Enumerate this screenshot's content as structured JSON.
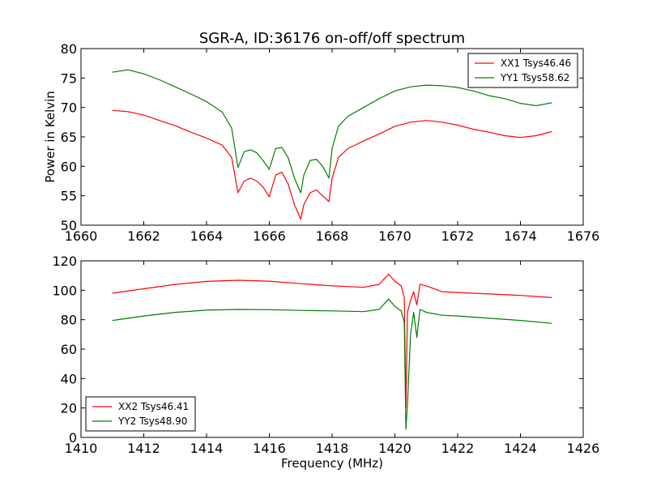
{
  "figure": {
    "title": "SGR-A, ID:36176 on-off/off spectrum"
  },
  "colors": {
    "red": "#ff0000",
    "green": "#007f00"
  },
  "chart_data": [
    {
      "type": "line",
      "title": "SGR-A, ID:36176 on-off/off spectrum",
      "xlabel": "",
      "ylabel": "Power in Kelvin",
      "xlim": [
        1660,
        1676
      ],
      "ylim": [
        50,
        80
      ],
      "xticks": [
        1660,
        1662,
        1664,
        1666,
        1668,
        1670,
        1672,
        1674,
        1676
      ],
      "yticks": [
        50,
        55,
        60,
        65,
        70,
        75,
        80
      ],
      "legend_position": "top-right",
      "series": [
        {
          "name": "XX1 Tsys46.46",
          "color": "#ff0000",
          "x": [
            1661.0,
            1661.5,
            1662.0,
            1662.5,
            1663.0,
            1663.5,
            1664.0,
            1664.5,
            1664.8,
            1665.0,
            1665.2,
            1665.4,
            1665.6,
            1665.8,
            1666.0,
            1666.2,
            1666.4,
            1666.6,
            1666.8,
            1667.0,
            1667.1,
            1667.3,
            1667.5,
            1667.7,
            1667.9,
            1668.0,
            1668.2,
            1668.5,
            1669.0,
            1669.5,
            1670.0,
            1670.5,
            1671.0,
            1671.5,
            1672.0,
            1672.5,
            1673.0,
            1673.5,
            1674.0,
            1674.5,
            1675.0
          ],
          "y": [
            69.5,
            69.3,
            68.7,
            67.8,
            66.9,
            65.8,
            64.8,
            63.6,
            61.5,
            55.5,
            57.5,
            58.0,
            57.5,
            56.5,
            54.8,
            58.5,
            59.0,
            57.0,
            53.5,
            51.0,
            53.5,
            55.5,
            56.0,
            55.0,
            54.0,
            58.0,
            61.5,
            63.0,
            64.3,
            65.5,
            66.8,
            67.5,
            67.8,
            67.5,
            67.0,
            66.3,
            65.8,
            65.2,
            64.9,
            65.2,
            65.9
          ]
        },
        {
          "name": "YY1 Tsys58.62",
          "color": "#007f00",
          "x": [
            1661.0,
            1661.5,
            1662.0,
            1662.5,
            1663.0,
            1663.5,
            1664.0,
            1664.5,
            1664.8,
            1665.0,
            1665.2,
            1665.4,
            1665.6,
            1665.8,
            1666.0,
            1666.2,
            1666.4,
            1666.6,
            1666.8,
            1667.0,
            1667.1,
            1667.3,
            1667.5,
            1667.7,
            1667.9,
            1668.0,
            1668.2,
            1668.5,
            1669.0,
            1669.5,
            1670.0,
            1670.5,
            1671.0,
            1671.5,
            1672.0,
            1672.5,
            1673.0,
            1673.5,
            1674.0,
            1674.5,
            1675.0
          ],
          "y": [
            76.0,
            76.4,
            75.7,
            74.7,
            73.5,
            72.3,
            71.0,
            69.2,
            66.5,
            59.8,
            62.5,
            62.8,
            62.3,
            61.0,
            59.5,
            63.0,
            63.2,
            61.5,
            58.0,
            55.5,
            58.5,
            61.0,
            61.2,
            60.0,
            58.0,
            63.0,
            66.8,
            68.5,
            70.0,
            71.5,
            72.8,
            73.5,
            73.8,
            73.7,
            73.4,
            72.8,
            72.0,
            71.5,
            70.7,
            70.3,
            70.8
          ]
        }
      ]
    },
    {
      "type": "line",
      "title": "",
      "xlabel": "Frequency (MHz)",
      "ylabel": "",
      "xlim": [
        1410,
        1426
      ],
      "ylim": [
        0,
        120
      ],
      "xticks": [
        1410,
        1412,
        1414,
        1416,
        1418,
        1420,
        1422,
        1424,
        1426
      ],
      "yticks": [
        0,
        20,
        40,
        60,
        80,
        100,
        120
      ],
      "legend_position": "bottom-left",
      "series": [
        {
          "name": "XX2 Tsys46.41",
          "color": "#ff0000",
          "x": [
            1411.0,
            1412.0,
            1413.0,
            1414.0,
            1415.0,
            1416.0,
            1417.0,
            1418.0,
            1419.0,
            1419.5,
            1419.8,
            1420.0,
            1420.2,
            1420.3,
            1420.35,
            1420.4,
            1420.5,
            1420.6,
            1420.7,
            1420.8,
            1421.0,
            1421.5,
            1422.0,
            1423.0,
            1424.0,
            1425.0
          ],
          "y": [
            98.0,
            101.0,
            104.0,
            106.0,
            106.8,
            106.2,
            104.5,
            103.0,
            102.0,
            104.0,
            111.0,
            106.0,
            103.0,
            95.0,
            20.0,
            85.0,
            93.0,
            99.0,
            90.0,
            104.0,
            103.0,
            99.0,
            98.5,
            97.5,
            96.5,
            95.0
          ]
        },
        {
          "name": "YY2 Tsys48.90",
          "color": "#007f00",
          "x": [
            1411.0,
            1412.0,
            1413.0,
            1414.0,
            1415.0,
            1416.0,
            1417.0,
            1418.0,
            1419.0,
            1419.5,
            1419.8,
            1420.0,
            1420.2,
            1420.3,
            1420.35,
            1420.4,
            1420.5,
            1420.6,
            1420.7,
            1420.8,
            1421.0,
            1421.5,
            1422.0,
            1423.0,
            1424.0,
            1425.0
          ],
          "y": [
            79.5,
            82.5,
            85.0,
            86.5,
            87.0,
            86.8,
            86.3,
            86.0,
            85.5,
            87.0,
            94.0,
            89.0,
            86.0,
            78.0,
            5.5,
            22.0,
            70.0,
            85.0,
            68.0,
            87.0,
            85.0,
            83.0,
            82.5,
            81.0,
            79.5,
            77.5
          ]
        }
      ]
    }
  ]
}
